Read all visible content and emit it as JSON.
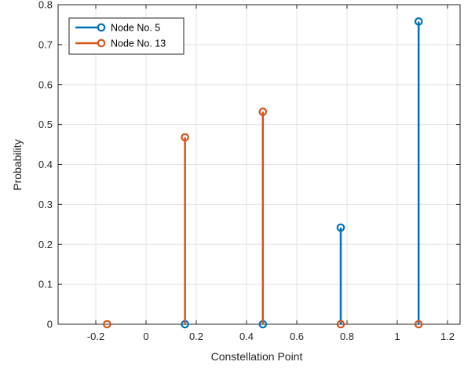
{
  "chart_data": {
    "type": "stem",
    "xlabel": "Constellation Point",
    "ylabel": "Probability",
    "xlim": [
      -0.35,
      1.25
    ],
    "ylim": [
      0,
      0.8
    ],
    "xticks": [
      -0.2,
      0,
      0.2,
      0.4,
      0.6,
      0.8,
      1,
      1.2
    ],
    "xtick_labels": [
      "-0.2",
      "0",
      "0.2",
      "0.4",
      "0.6",
      "0.8",
      "1",
      "1.2"
    ],
    "yticks": [
      0,
      0.1,
      0.2,
      0.3,
      0.4,
      0.5,
      0.6,
      0.7,
      0.8
    ],
    "ytick_labels": [
      "0",
      "0.1",
      "0.2",
      "0.3",
      "0.4",
      "0.5",
      "0.6",
      "0.7",
      "0.8"
    ],
    "grid": true,
    "legend_position": "top-left",
    "series": [
      {
        "name": "Node No. 5",
        "color": "#0072BD",
        "x": [
          0.155,
          0.465,
          0.775,
          1.085
        ],
        "y": [
          0,
          0,
          0.242,
          0.758
        ]
      },
      {
        "name": "Node No. 13",
        "color": "#D95319",
        "x": [
          -0.155,
          0.155,
          0.465,
          0.775,
          1.085
        ],
        "y": [
          0,
          0.468,
          0.532,
          0,
          0
        ]
      }
    ]
  }
}
